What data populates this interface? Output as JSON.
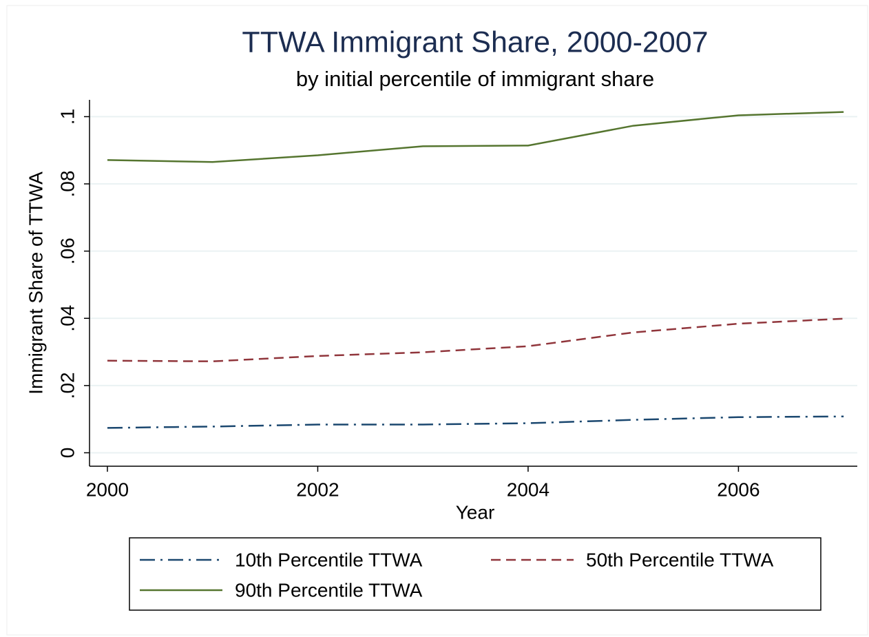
{
  "chart_data": {
    "type": "line",
    "title": "TTWA Immigrant Share, 2000-2007",
    "subtitle": "by initial percentile of immigrant share",
    "x_label": "Year",
    "y_label": "Immigrant Share of TTWA",
    "x": [
      2000,
      2001,
      2002,
      2003,
      2004,
      2005,
      2006,
      2007
    ],
    "series": [
      {
        "name": "10th Percentile TTWA",
        "color": "#1a476f",
        "style": "dash_dot",
        "values": [
          0.0074,
          0.0078,
          0.0084,
          0.0084,
          0.0088,
          0.0098,
          0.0106,
          0.0108
        ]
      },
      {
        "name": "50th Percentile TTWA",
        "color": "#90353b",
        "style": "dash",
        "values": [
          0.0274,
          0.0272,
          0.0288,
          0.0299,
          0.0317,
          0.0358,
          0.0384,
          0.0399
        ]
      },
      {
        "name": "90th Percentile TTWA",
        "color": "#55752f",
        "style": "solid",
        "values": [
          0.0871,
          0.0865,
          0.0885,
          0.0912,
          0.0914,
          0.0973,
          0.1004,
          0.1014
        ]
      }
    ],
    "xlim": [
      1999.83,
      2007.13
    ],
    "ylim": [
      -0.004,
      0.105
    ],
    "xticks": [
      2000,
      2002,
      2004,
      2006
    ],
    "yticks": [
      0,
      {
        "value": 0.02,
        "label": ".02"
      },
      {
        "value": 0.04,
        "label": ".04"
      },
      {
        "value": 0.06,
        "label": ".06"
      },
      {
        "value": 0.08,
        "label": ".08"
      },
      {
        "value": 0.1,
        "label": ".1"
      }
    ],
    "grid": true,
    "legend_position": "bottom",
    "legend_columns": 2
  }
}
